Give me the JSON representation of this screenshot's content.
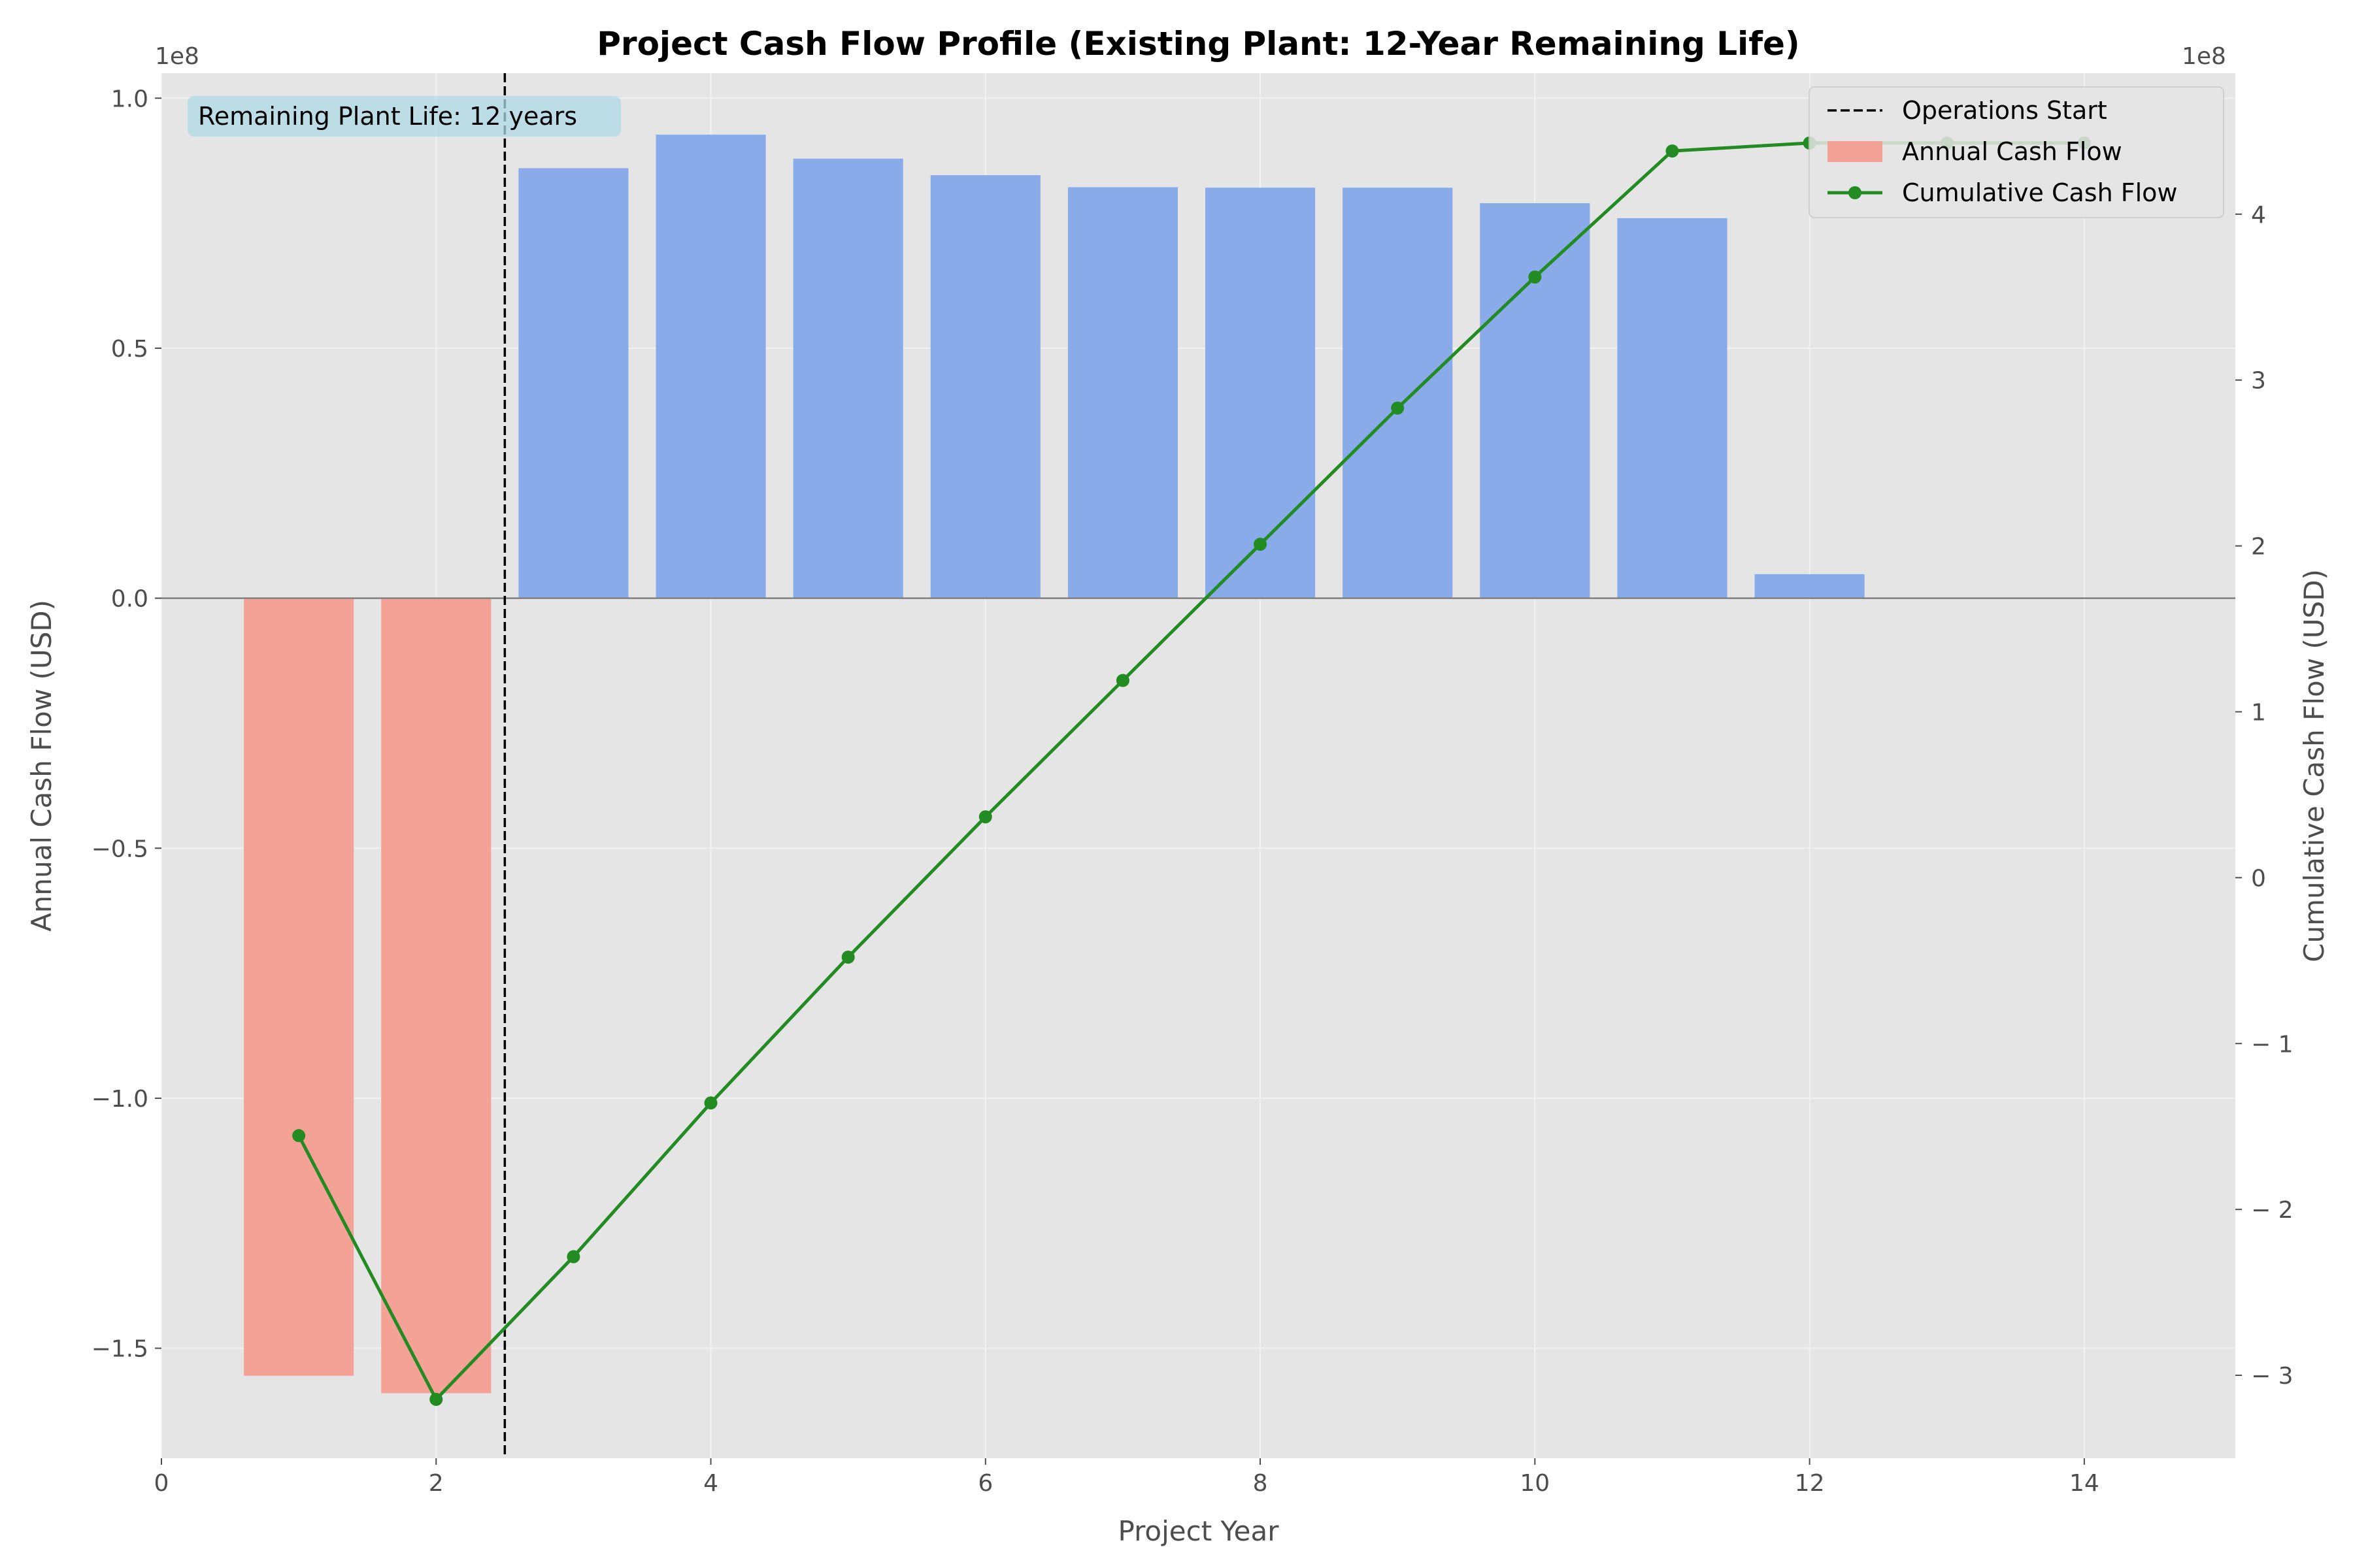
{
  "chart_data": {
    "type": "bar",
    "title": "Project Cash Flow Profile (Existing Plant: 12-Year Remaining Life)",
    "xlabel": "Project Year",
    "ylabel_left": "Annual Cash Flow (USD)",
    "ylabel_right": "Cumulative Cash Flow (USD)",
    "left_multiplier": "1e8",
    "right_multiplier": "1e8",
    "xlim": [
      0,
      15.1
    ],
    "ylim_left": [
      -172000000.0,
      105000000.0
    ],
    "ylim_right": [
      -350000000.0,
      485000000.0
    ],
    "x_ticks": [
      0,
      2,
      4,
      6,
      8,
      10,
      12,
      14
    ],
    "y_ticks_left": [
      1.0,
      0.5,
      0.0,
      -0.5,
      -1.0,
      -1.5
    ],
    "y_ticks_left_labels": [
      "1.0",
      "0.5",
      "0.0",
      "−0.5",
      "−1.0",
      "−1.5"
    ],
    "y_ticks_right": [
      4,
      3,
      2,
      1,
      0,
      -1,
      -2,
      -3
    ],
    "y_ticks_right_labels": [
      "4",
      "3",
      "2",
      "1",
      "0",
      "− 1",
      "− 2",
      "− 3"
    ],
    "grid": true,
    "legend_position": "top-right",
    "annual_cash_flow": {
      "name": "Annual Cash Flow",
      "years": [
        1,
        2,
        3,
        4,
        5,
        6,
        7,
        8,
        9,
        10,
        11,
        12
      ],
      "values": [
        -155500000,
        -159000000,
        86000000,
        92700000,
        87900000,
        84600000,
        82200000,
        82100000,
        82100000,
        79000000,
        76000000,
        4800000
      ],
      "color_negative": "#f4a196",
      "color_positive": "#8aabe9"
    },
    "cumulative_cash_flow": {
      "name": "Cumulative Cash Flow",
      "x": [
        1,
        2,
        3,
        4,
        5,
        6,
        7,
        8,
        9,
        10,
        11,
        12,
        13,
        14
      ],
      "values": [
        -155500000,
        -314500000,
        -228500000,
        -135800000,
        -47900000,
        36700000,
        118900000,
        201000000,
        283100000,
        362100000,
        438100000,
        442900000,
        442900000,
        442900000
      ],
      "color": "#228b22"
    },
    "operations_start": {
      "name": "Operations Start",
      "x": 2.5
    },
    "annotation": "Remaining Plant Life: 12 years",
    "colors": {
      "plot_background": "#e5e5e5",
      "grid": "#f2f2f2",
      "zero_line": "#808080",
      "annotation_box": "#add8e6"
    }
  }
}
